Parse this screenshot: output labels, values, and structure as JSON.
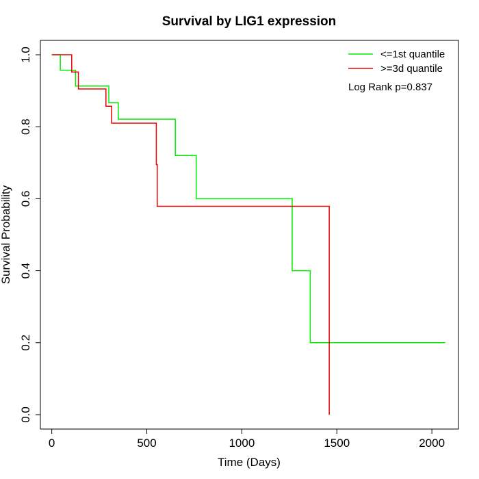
{
  "chart_data": {
    "type": "line",
    "title": "Survival by LIG1 expression",
    "xlabel": "Time (Days)",
    "ylabel": "Survival Probability",
    "xlim": [
      -60,
      2140
    ],
    "ylim": [
      -0.04,
      1.04
    ],
    "xticks": [
      0,
      500,
      1000,
      1500,
      2000
    ],
    "yticks": [
      0.0,
      0.2,
      0.4,
      0.6,
      0.8,
      1.0
    ],
    "xtick_labels": [
      "0",
      "500",
      "1000",
      "1500",
      "2000"
    ],
    "ytick_labels": [
      "0.0",
      "0.2",
      "0.4",
      "0.6",
      "0.8",
      "1.0"
    ],
    "grid": false,
    "legend_position": "top-right",
    "annotation": "Log Rank p=0.837",
    "series": [
      {
        "name": "<=1st quantile",
        "color": "#00ee00",
        "step": true,
        "points": [
          [
            0,
            1.0
          ],
          [
            45,
            0.957
          ],
          [
            125,
            0.913
          ],
          [
            300,
            0.867
          ],
          [
            350,
            0.821
          ],
          [
            650,
            0.72
          ],
          [
            760,
            0.6
          ],
          [
            1265,
            0.4
          ],
          [
            1360,
            0.2
          ],
          [
            2070,
            0.2
          ]
        ]
      },
      {
        "name": ">=3d quantile",
        "color": "#ee0000",
        "step": true,
        "points": [
          [
            0,
            1.0
          ],
          [
            105,
            0.952
          ],
          [
            140,
            0.905
          ],
          [
            285,
            0.857
          ],
          [
            315,
            0.81
          ],
          [
            550,
            0.695
          ],
          [
            555,
            0.579
          ],
          [
            1460,
            0.579
          ],
          [
            1460,
            0.0
          ]
        ]
      }
    ]
  }
}
